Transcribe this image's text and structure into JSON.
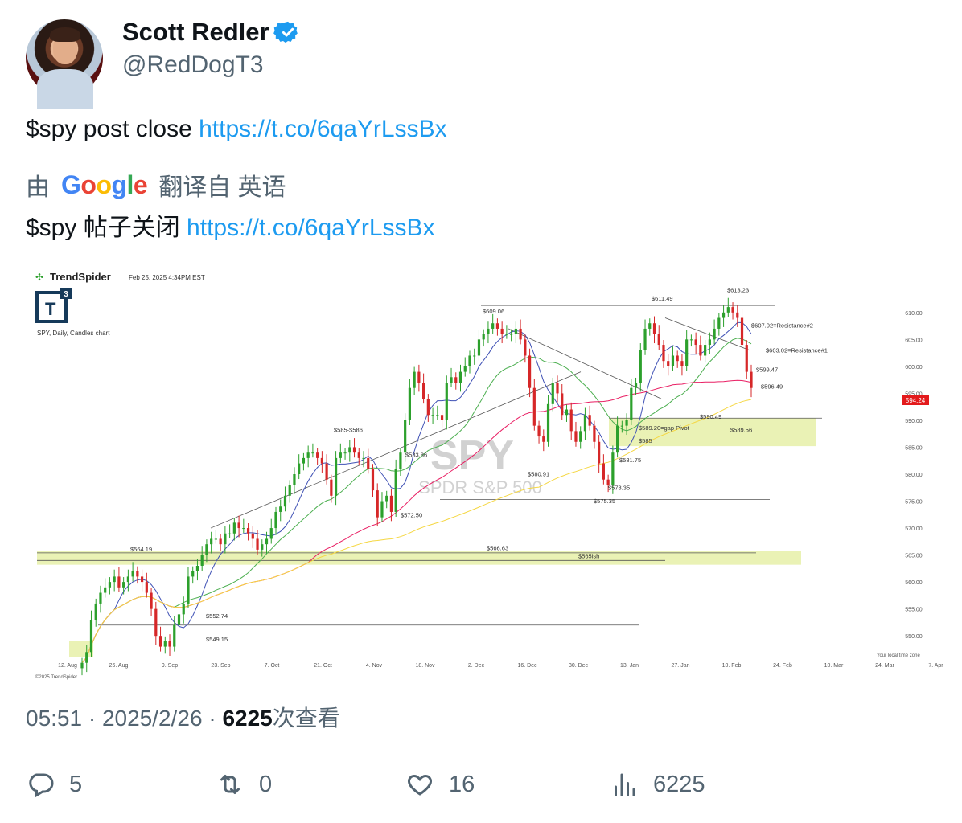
{
  "tweet": {
    "author_name": "Scott Redler",
    "handle": "@RedDogT3",
    "text_prefix": "$spy post close ",
    "link": "https://t.co/6qaYrLssBx",
    "translate_by": "由",
    "translate_suffix": "翻译自 英语",
    "translated_prefix": "$spy 帖子关闭 ",
    "time": "05:51",
    "date": "2025/2/26",
    "views": "6225",
    "views_label": "次查看",
    "replies": "5",
    "retweets": "0",
    "likes": "16",
    "view_count": "6225"
  },
  "google_logo": [
    "G",
    "o",
    "o",
    "g",
    "l",
    "e"
  ],
  "colors": {
    "link": "#1d9bf0",
    "verified": "#1d9bf0",
    "muted": "#536471",
    "up": "#2ca02c",
    "down": "#d62728"
  },
  "icons": {
    "verified": "verified-badge-icon",
    "reply": "reply-icon",
    "retweet": "retweet-icon",
    "like": "heart-icon",
    "views": "bar-chart-icon"
  },
  "chart_data": {
    "type": "line",
    "brand": "TrendSpider",
    "timestamp": "Feb 25, 2025 4:34PM EST",
    "badge": "T3",
    "subtitle": "SPY, Daily, Candles chart",
    "watermark_symbol": "SPY",
    "watermark_name": "SPDR S&P 500",
    "copyright": "©2025 TrendSpider",
    "local_time_note": "Your local time zone",
    "last_price": "594.24",
    "ylim": [
      546,
      614
    ],
    "y_ticks": [
      "610.00",
      "605.00",
      "600.00",
      "595.00",
      "590.00",
      "585.00",
      "580.00",
      "575.00",
      "570.00",
      "565.00",
      "560.00",
      "555.00",
      "550.00"
    ],
    "x_ticks": [
      "12. Aug",
      "26. Aug",
      "9. Sep",
      "23. Sep",
      "7. Oct",
      "21. Oct",
      "4. Nov",
      "18. Nov",
      "2. Dec",
      "16. Dec",
      "30. Dec",
      "13. Jan",
      "27. Jan",
      "10. Feb",
      "24. Feb",
      "10. Mar",
      "24. Mar",
      "7. Apr"
    ],
    "close": [
      545,
      547,
      553,
      556,
      558,
      559,
      560,
      561,
      559,
      560,
      561,
      562,
      561,
      560,
      558,
      555,
      550,
      548,
      549,
      548,
      552,
      554,
      556,
      561,
      562,
      563,
      565,
      567,
      568,
      568,
      567,
      569,
      569,
      571,
      570,
      570,
      569,
      568,
      566,
      567,
      568,
      570,
      573,
      574,
      576,
      578,
      580,
      582,
      583,
      584,
      584,
      583,
      582,
      579,
      576,
      583,
      584,
      584,
      585,
      584,
      583,
      583,
      581,
      577,
      572,
      575,
      576,
      573,
      581,
      584,
      590,
      596,
      599,
      597,
      594,
      591,
      591,
      591,
      590,
      597,
      598,
      597,
      599,
      600,
      602,
      602,
      605,
      606,
      607,
      608,
      607,
      606,
      606,
      606,
      607,
      605,
      602,
      596,
      589,
      587,
      586,
      593,
      597,
      595,
      591,
      592,
      588,
      586,
      588,
      591,
      589,
      586,
      582,
      579,
      578,
      584,
      589,
      589,
      590,
      596,
      597,
      603,
      607,
      608,
      606,
      604,
      601,
      600,
      602,
      601,
      600,
      605,
      605,
      604,
      602,
      604,
      605,
      607,
      609,
      610,
      611,
      610,
      609,
      604,
      599,
      596
    ],
    "annotations": [
      "$613.23",
      "$611.49",
      "$609.06",
      "$607.02=Resistance#2",
      "$603.02=Resistance#1",
      "$599.47",
      "$596.49",
      "$590.49",
      "$589.56",
      "$589.20=gap Pivot",
      "$585",
      "$585-$586",
      "$583.86",
      "$581.75",
      "$580.91",
      "$578.35",
      "$575.35",
      "$572.50",
      "$566.63",
      "$565ish",
      "$564.19",
      "$552.74",
      "$549.15"
    ]
  },
  "chart_labels": {
    "title": "SPY"
  }
}
